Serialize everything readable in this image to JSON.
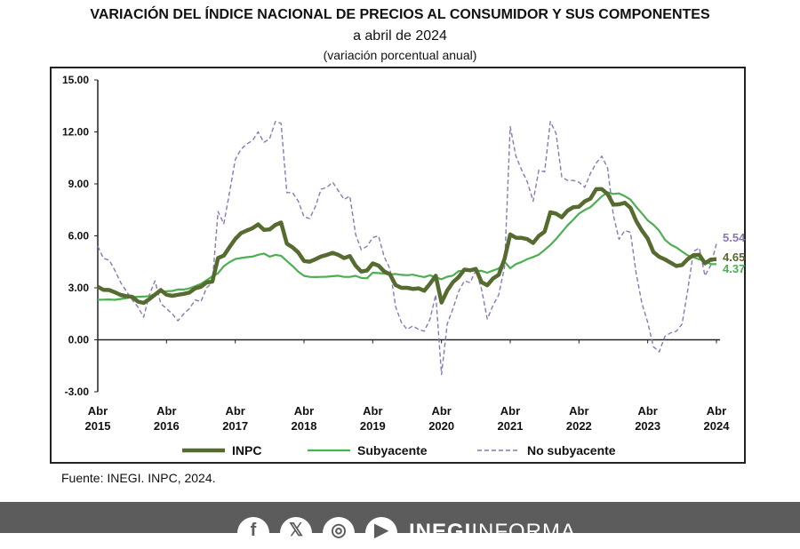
{
  "header": {
    "title": "VARIACIÓN DEL ÍNDICE NACIONAL DE PRECIOS AL CONSUMIDOR Y SUS COMPONENTES",
    "subtitle": "a abril de 2024",
    "subtitle2": "(variación porcentual anual)"
  },
  "source": "Fuente: INEGI. INPC, 2024.",
  "footer": {
    "icons": [
      "facebook-icon",
      "x-icon",
      "instagram-icon",
      "youtube-icon"
    ],
    "brand_bold": "INEGI",
    "brand_light": "INFORMA",
    "background": "#5c5c5c"
  },
  "chart_data": {
    "type": "line",
    "ylim": [
      -3,
      15
    ],
    "y_ticks": [
      "-3.00",
      "0.00",
      "3.00",
      "6.00",
      "9.00",
      "12.00",
      "15.00"
    ],
    "x_ticks": [
      {
        "month": "Abr",
        "year": "2015"
      },
      {
        "month": "Abr",
        "year": "2016"
      },
      {
        "month": "Abr",
        "year": "2017"
      },
      {
        "month": "Abr",
        "year": "2018"
      },
      {
        "month": "Abr",
        "year": "2019"
      },
      {
        "month": "Abr",
        "year": "2020"
      },
      {
        "month": "Abr",
        "year": "2021"
      },
      {
        "month": "Abr",
        "year": "2022"
      },
      {
        "month": "Abr",
        "year": "2023"
      },
      {
        "month": "Abr",
        "year": "2024"
      }
    ],
    "x_start": "2015-04",
    "grid": false,
    "legend": "bottom",
    "series": [
      {
        "name": "INPC",
        "color": "#556b2f",
        "style": "solid",
        "end_label": "4.65",
        "values": [
          3.06,
          2.88,
          2.87,
          2.74,
          2.59,
          2.52,
          2.48,
          2.21,
          2.13,
          2.35,
          2.61,
          2.87,
          2.6,
          2.54,
          2.6,
          2.65,
          2.73,
          2.97,
          3.06,
          3.31,
          3.36,
          4.72,
          4.86,
          5.35,
          5.82,
          6.16,
          6.31,
          6.44,
          6.66,
          6.35,
          6.37,
          6.63,
          6.77,
          5.55,
          5.34,
          5.04,
          4.55,
          4.51,
          4.65,
          4.81,
          4.9,
          5.02,
          4.9,
          4.72,
          4.83,
          4.28,
          3.94,
          4.0,
          4.41,
          4.28,
          3.95,
          3.78,
          3.16,
          3.0,
          3.0,
          2.94,
          2.97,
          2.83,
          3.24,
          3.7,
          2.15,
          2.84,
          3.33,
          3.62,
          4.05,
          4.01,
          4.09,
          3.33,
          3.15,
          3.54,
          3.76,
          4.67,
          6.08,
          5.89,
          5.88,
          5.81,
          5.59,
          6.0,
          6.24,
          7.36,
          7.28,
          7.07,
          7.45,
          7.65,
          7.68,
          7.99,
          8.15,
          8.7,
          8.7,
          8.41,
          7.8,
          7.82,
          7.91,
          7.62,
          6.85,
          6.3,
          5.84,
          5.06,
          4.79,
          4.64,
          4.45,
          4.26,
          4.32,
          4.66,
          4.88,
          4.9,
          4.42,
          4.63,
          4.65
        ]
      },
      {
        "name": "Subyacente",
        "color": "#4caf50",
        "style": "solid",
        "end_label": "4.37",
        "values": [
          2.31,
          2.32,
          2.33,
          2.31,
          2.36,
          2.41,
          2.47,
          2.48,
          2.5,
          2.52,
          2.64,
          2.76,
          2.8,
          2.82,
          2.9,
          2.9,
          2.97,
          3.09,
          3.23,
          3.44,
          3.66,
          3.84,
          4.25,
          4.48,
          4.66,
          4.72,
          4.77,
          4.8,
          4.91,
          4.98,
          4.8,
          4.9,
          4.85,
          4.55,
          4.26,
          3.93,
          3.69,
          3.63,
          3.62,
          3.63,
          3.64,
          3.67,
          3.7,
          3.63,
          3.63,
          3.69,
          3.57,
          3.55,
          3.87,
          3.85,
          3.82,
          3.77,
          3.8,
          3.75,
          3.73,
          3.76,
          3.68,
          3.62,
          3.73,
          3.6,
          3.5,
          3.64,
          3.71,
          3.97,
          3.99,
          4.03,
          3.98,
          3.98,
          3.87,
          4.0,
          4.12,
          4.51,
          4.13,
          4.37,
          4.5,
          4.66,
          4.78,
          4.92,
          5.19,
          5.47,
          5.82,
          6.21,
          6.6,
          6.93,
          7.28,
          7.49,
          7.65,
          7.97,
          8.28,
          8.51,
          8.42,
          8.45,
          8.29,
          8.09,
          7.67,
          7.29,
          6.89,
          6.64,
          6.29,
          5.78,
          5.5,
          5.33,
          5.1,
          4.87,
          4.76,
          4.64,
          4.55,
          4.37,
          4.37
        ]
      },
      {
        "name": "No subyacente",
        "color": "#8a78b6",
        "style": "dashed",
        "end_label": "5.54",
        "values": [
          5.4,
          4.7,
          4.6,
          4.0,
          3.3,
          2.8,
          2.3,
          1.9,
          1.3,
          2.6,
          3.4,
          2.1,
          1.8,
          1.5,
          1.1,
          1.5,
          1.8,
          2.3,
          2.2,
          3.0,
          3.3,
          7.4,
          6.7,
          8.5,
          10.4,
          11.0,
          11.3,
          11.5,
          12.0,
          11.4,
          11.6,
          12.6,
          12.5,
          8.5,
          8.5,
          8.0,
          7.1,
          7.0,
          7.7,
          8.7,
          8.8,
          9.1,
          8.6,
          8.1,
          8.3,
          6.1,
          5.2,
          5.4,
          5.9,
          6.0,
          4.8,
          4.1,
          1.9,
          1.0,
          0.6,
          0.8,
          0.6,
          0.5,
          1.2,
          2.6,
          -2.0,
          0.9,
          1.8,
          2.8,
          3.4,
          3.3,
          4.0,
          2.9,
          1.2,
          2.0,
          2.6,
          4.2,
          12.3,
          10.6,
          9.8,
          9.1,
          8.0,
          9.8,
          9.7,
          12.6,
          11.9,
          9.4,
          9.2,
          9.2,
          9.1,
          8.8,
          9.6,
          10.2,
          10.6,
          9.9,
          7.2,
          5.8,
          6.3,
          6.2,
          3.8,
          2.1,
          1.0,
          -0.4,
          -0.7,
          0.2,
          0.4,
          0.5,
          0.9,
          2.9,
          5.1,
          5.3,
          3.7,
          4.3,
          5.54
        ]
      }
    ]
  }
}
